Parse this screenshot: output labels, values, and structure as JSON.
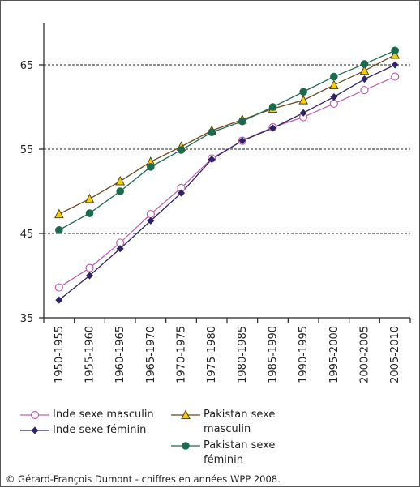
{
  "chart_data": {
    "type": "line",
    "x": [
      "1950-1955",
      "1955-1960",
      "1960-1965",
      "1965-1970",
      "1970-1975",
      "1975-1980",
      "1980-1985",
      "1985-1990",
      "1990-1995",
      "1995-2000",
      "2000-2005",
      "2005-2010"
    ],
    "ylim": [
      35,
      70
    ],
    "yticks": [
      35,
      45,
      55,
      65
    ],
    "grid": "horizontal dashed at 45, 55, 65",
    "legend_position": "bottom",
    "series": [
      {
        "name": "Inde sexe masculin",
        "marker": "open-circle",
        "color": "#c060b0",
        "values": [
          38.6,
          40.9,
          43.9,
          47.3,
          50.4,
          53.9,
          56.0,
          57.6,
          58.8,
          60.4,
          62.0,
          63.6
        ]
      },
      {
        "name": "Inde sexe féminin",
        "marker": "diamond",
        "color": "#2c2266",
        "values": [
          37.1,
          40.0,
          43.2,
          46.5,
          49.8,
          53.8,
          56.0,
          57.5,
          59.3,
          61.2,
          63.3,
          65.0
        ]
      },
      {
        "name": "Pakistan sexe masculin",
        "marker": "triangle",
        "color": "#6a4a20",
        "marker_fill": "#f5d000",
        "values": [
          47.3,
          49.1,
          51.2,
          53.5,
          55.3,
          57.2,
          58.5,
          59.8,
          60.8,
          62.6,
          64.3,
          66.2
        ]
      },
      {
        "name": "Pakistan sexe féminin",
        "marker": "filled-circle",
        "color": "#1c6a4e",
        "values": [
          45.4,
          47.4,
          50.0,
          52.9,
          54.9,
          57.0,
          58.3,
          60.0,
          61.8,
          63.6,
          65.1,
          66.7
        ]
      }
    ]
  },
  "legend": [
    {
      "label": "Inde sexe masculin"
    },
    {
      "label": "Inde sexe féminin"
    },
    {
      "label_line1": "Pakistan sexe",
      "label_line2": "masculin"
    },
    {
      "label_line1": "Pakistan sexe",
      "label_line2": "féminin"
    }
  ],
  "credit": "© Gérard-François Dumont - chiffres en années WPP 2008."
}
